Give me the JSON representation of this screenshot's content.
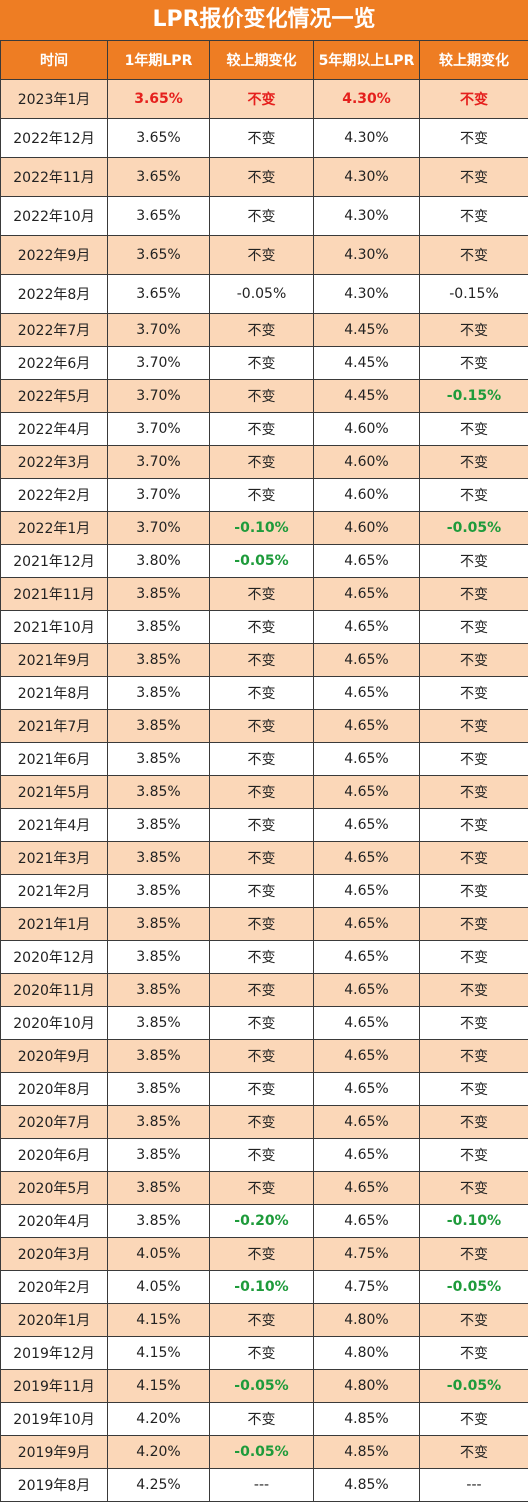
{
  "title": "LPR报价变化情况一览",
  "columns": [
    "时间",
    "1年期LPR",
    "较上期变化",
    "5年期以上LPR",
    "较上期变化"
  ],
  "colors": {
    "header": "#ee7d23",
    "stripe": "#fbd7b8",
    "red": "#e5201d",
    "green": "#1e9b3b"
  },
  "rows": [
    {
      "cells": [
        "2023年1月",
        "3.65%",
        "不变",
        "4.30%",
        "不变"
      ],
      "styles": [
        "",
        "red",
        "red",
        "red",
        "red"
      ]
    },
    {
      "cells": [
        "2022年12月",
        "3.65%",
        "不变",
        "4.30%",
        "不变"
      ],
      "styles": [
        "",
        "",
        "",
        "",
        ""
      ]
    },
    {
      "cells": [
        "2022年11月",
        "3.65%",
        "不变",
        "4.30%",
        "不变"
      ],
      "styles": [
        "",
        "",
        "",
        "",
        ""
      ]
    },
    {
      "cells": [
        "2022年10月",
        "3.65%",
        "不变",
        "4.30%",
        "不变"
      ],
      "styles": [
        "",
        "",
        "",
        "",
        ""
      ]
    },
    {
      "cells": [
        "2022年9月",
        "3.65%",
        "不变",
        "4.30%",
        "不变"
      ],
      "styles": [
        "",
        "",
        "",
        "",
        ""
      ]
    },
    {
      "cells": [
        "2022年8月",
        "3.65%",
        "-0.05%",
        "4.30%",
        "-0.15%"
      ],
      "styles": [
        "",
        "",
        "",
        "",
        ""
      ]
    },
    {
      "cells": [
        "2022年7月",
        "3.70%",
        "不变",
        "4.45%",
        "不变"
      ],
      "styles": [
        "",
        "",
        "",
        "",
        ""
      ]
    },
    {
      "cells": [
        "2022年6月",
        "3.70%",
        "不变",
        "4.45%",
        "不变"
      ],
      "styles": [
        "",
        "",
        "",
        "",
        ""
      ]
    },
    {
      "cells": [
        "2022年5月",
        "3.70%",
        "不变",
        "4.45%",
        "-0.15%"
      ],
      "styles": [
        "",
        "",
        "",
        "",
        "green"
      ]
    },
    {
      "cells": [
        "2022年4月",
        "3.70%",
        "不变",
        "4.60%",
        "不变"
      ],
      "styles": [
        "",
        "",
        "",
        "",
        ""
      ]
    },
    {
      "cells": [
        "2022年3月",
        "3.70%",
        "不变",
        "4.60%",
        "不变"
      ],
      "styles": [
        "",
        "",
        "",
        "",
        ""
      ]
    },
    {
      "cells": [
        "2022年2月",
        "3.70%",
        "不变",
        "4.60%",
        "不变"
      ],
      "styles": [
        "",
        "",
        "",
        "",
        ""
      ]
    },
    {
      "cells": [
        "2022年1月",
        "3.70%",
        "-0.10%",
        "4.60%",
        "-0.05%"
      ],
      "styles": [
        "",
        "",
        "green",
        "",
        "green"
      ]
    },
    {
      "cells": [
        "2021年12月",
        "3.80%",
        "-0.05%",
        "4.65%",
        "不变"
      ],
      "styles": [
        "",
        "",
        "green",
        "",
        ""
      ]
    },
    {
      "cells": [
        "2021年11月",
        "3.85%",
        "不变",
        "4.65%",
        "不变"
      ],
      "styles": [
        "",
        "",
        "",
        "",
        ""
      ]
    },
    {
      "cells": [
        "2021年10月",
        "3.85%",
        "不变",
        "4.65%",
        "不变"
      ],
      "styles": [
        "",
        "",
        "",
        "",
        ""
      ]
    },
    {
      "cells": [
        "2021年9月",
        "3.85%",
        "不变",
        "4.65%",
        "不变"
      ],
      "styles": [
        "",
        "",
        "",
        "",
        ""
      ]
    },
    {
      "cells": [
        "2021年8月",
        "3.85%",
        "不变",
        "4.65%",
        "不变"
      ],
      "styles": [
        "",
        "",
        "",
        "",
        ""
      ]
    },
    {
      "cells": [
        "2021年7月",
        "3.85%",
        "不变",
        "4.65%",
        "不变"
      ],
      "styles": [
        "",
        "",
        "",
        "",
        ""
      ]
    },
    {
      "cells": [
        "2021年6月",
        "3.85%",
        "不变",
        "4.65%",
        "不变"
      ],
      "styles": [
        "",
        "",
        "",
        "",
        ""
      ]
    },
    {
      "cells": [
        "2021年5月",
        "3.85%",
        "不变",
        "4.65%",
        "不变"
      ],
      "styles": [
        "",
        "",
        "",
        "",
        ""
      ]
    },
    {
      "cells": [
        "2021年4月",
        "3.85%",
        "不变",
        "4.65%",
        "不变"
      ],
      "styles": [
        "",
        "",
        "",
        "",
        ""
      ]
    },
    {
      "cells": [
        "2021年3月",
        "3.85%",
        "不变",
        "4.65%",
        "不变"
      ],
      "styles": [
        "",
        "",
        "",
        "",
        ""
      ]
    },
    {
      "cells": [
        "2021年2月",
        "3.85%",
        "不变",
        "4.65%",
        "不变"
      ],
      "styles": [
        "",
        "",
        "",
        "",
        ""
      ]
    },
    {
      "cells": [
        "2021年1月",
        "3.85%",
        "不变",
        "4.65%",
        "不变"
      ],
      "styles": [
        "",
        "",
        "",
        "",
        ""
      ]
    },
    {
      "cells": [
        "2020年12月",
        "3.85%",
        "不变",
        "4.65%",
        "不变"
      ],
      "styles": [
        "",
        "",
        "",
        "",
        ""
      ]
    },
    {
      "cells": [
        "2020年11月",
        "3.85%",
        "不变",
        "4.65%",
        "不变"
      ],
      "styles": [
        "",
        "",
        "",
        "",
        ""
      ]
    },
    {
      "cells": [
        "2020年10月",
        "3.85%",
        "不变",
        "4.65%",
        "不变"
      ],
      "styles": [
        "",
        "",
        "",
        "",
        ""
      ]
    },
    {
      "cells": [
        "2020年9月",
        "3.85%",
        "不变",
        "4.65%",
        "不变"
      ],
      "styles": [
        "",
        "",
        "",
        "",
        ""
      ]
    },
    {
      "cells": [
        "2020年8月",
        "3.85%",
        "不变",
        "4.65%",
        "不变"
      ],
      "styles": [
        "",
        "",
        "",
        "",
        ""
      ]
    },
    {
      "cells": [
        "2020年7月",
        "3.85%",
        "不变",
        "4.65%",
        "不变"
      ],
      "styles": [
        "",
        "",
        "",
        "",
        ""
      ]
    },
    {
      "cells": [
        "2020年6月",
        "3.85%",
        "不变",
        "4.65%",
        "不变"
      ],
      "styles": [
        "",
        "",
        "",
        "",
        ""
      ]
    },
    {
      "cells": [
        "2020年5月",
        "3.85%",
        "不变",
        "4.65%",
        "不变"
      ],
      "styles": [
        "",
        "",
        "",
        "",
        ""
      ]
    },
    {
      "cells": [
        "2020年4月",
        "3.85%",
        "-0.20%",
        "4.65%",
        "-0.10%"
      ],
      "styles": [
        "",
        "",
        "green",
        "",
        "green"
      ]
    },
    {
      "cells": [
        "2020年3月",
        "4.05%",
        "不变",
        "4.75%",
        "不变"
      ],
      "styles": [
        "",
        "",
        "",
        "",
        ""
      ]
    },
    {
      "cells": [
        "2020年2月",
        "4.05%",
        "-0.10%",
        "4.75%",
        "-0.05%"
      ],
      "styles": [
        "",
        "",
        "green",
        "",
        "green"
      ]
    },
    {
      "cells": [
        "2020年1月",
        "4.15%",
        "不变",
        "4.80%",
        "不变"
      ],
      "styles": [
        "",
        "",
        "",
        "",
        ""
      ]
    },
    {
      "cells": [
        "2019年12月",
        "4.15%",
        "不变",
        "4.80%",
        "不变"
      ],
      "styles": [
        "",
        "",
        "",
        "",
        ""
      ]
    },
    {
      "cells": [
        "2019年11月",
        "4.15%",
        "-0.05%",
        "4.80%",
        "-0.05%"
      ],
      "styles": [
        "",
        "",
        "green",
        "",
        "green"
      ]
    },
    {
      "cells": [
        "2019年10月",
        "4.20%",
        "不变",
        "4.85%",
        "不变"
      ],
      "styles": [
        "",
        "",
        "",
        "",
        ""
      ]
    },
    {
      "cells": [
        "2019年9月",
        "4.20%",
        "-0.05%",
        "4.85%",
        "不变"
      ],
      "styles": [
        "",
        "",
        "green",
        "",
        ""
      ]
    },
    {
      "cells": [
        "2019年8月",
        "4.25%",
        "---",
        "4.85%",
        "---"
      ],
      "styles": [
        "",
        "",
        "",
        "",
        ""
      ]
    }
  ]
}
